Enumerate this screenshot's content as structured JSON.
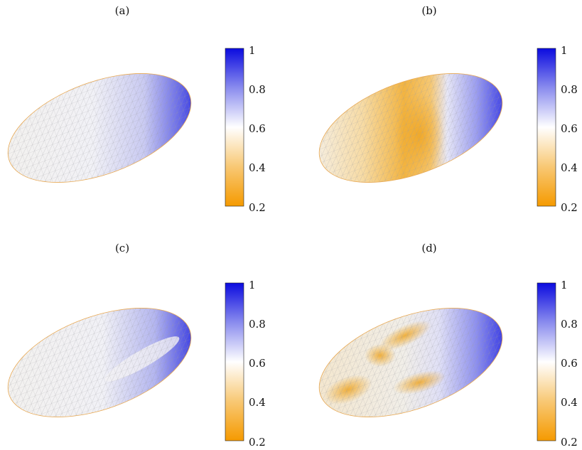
{
  "panels": [
    {
      "label": "(a)"
    },
    {
      "label": "(b)"
    },
    {
      "label": "(c)"
    },
    {
      "label": "(d)"
    }
  ],
  "colorbar": {
    "ticks": [
      "1",
      "0.8",
      "0.6",
      "0.4",
      "0.2"
    ],
    "colors": {
      "high": "#1010e0",
      "mid": "#ffffff",
      "low": "#f5a000"
    }
  }
}
